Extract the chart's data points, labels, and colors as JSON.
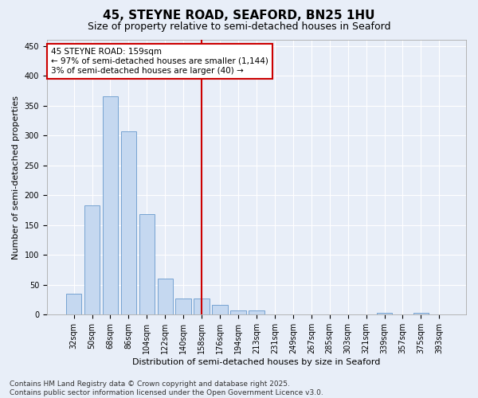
{
  "title": "45, STEYNE ROAD, SEAFORD, BN25 1HU",
  "subtitle": "Size of property relative to semi-detached houses in Seaford",
  "xlabel": "Distribution of semi-detached houses by size in Seaford",
  "ylabel": "Number of semi-detached properties",
  "categories": [
    "32sqm",
    "50sqm",
    "68sqm",
    "86sqm",
    "104sqm",
    "122sqm",
    "140sqm",
    "158sqm",
    "176sqm",
    "194sqm",
    "213sqm",
    "231sqm",
    "249sqm",
    "267sqm",
    "285sqm",
    "303sqm",
    "321sqm",
    "339sqm",
    "357sqm",
    "375sqm",
    "393sqm"
  ],
  "values": [
    35,
    183,
    365,
    307,
    168,
    60,
    27,
    27,
    17,
    7,
    7,
    0,
    0,
    0,
    0,
    0,
    0,
    3,
    0,
    3,
    0
  ],
  "bar_color": "#c5d8f0",
  "bar_edge_color": "#6699cc",
  "highlight_index": 7,
  "highlight_color": "#cc0000",
  "annotation_title": "45 STEYNE ROAD: 159sqm",
  "annotation_line1": "← 97% of semi-detached houses are smaller (1,144)",
  "annotation_line2": "3% of semi-detached houses are larger (40) →",
  "ylim": [
    0,
    460
  ],
  "yticks": [
    0,
    50,
    100,
    150,
    200,
    250,
    300,
    350,
    400,
    450
  ],
  "footer_line1": "Contains HM Land Registry data © Crown copyright and database right 2025.",
  "footer_line2": "Contains public sector information licensed under the Open Government Licence v3.0.",
  "background_color": "#e8eef8",
  "grid_color": "#ffffff",
  "title_fontsize": 11,
  "subtitle_fontsize": 9,
  "axis_label_fontsize": 8,
  "tick_fontsize": 7,
  "annotation_fontsize": 7.5,
  "footer_fontsize": 6.5
}
